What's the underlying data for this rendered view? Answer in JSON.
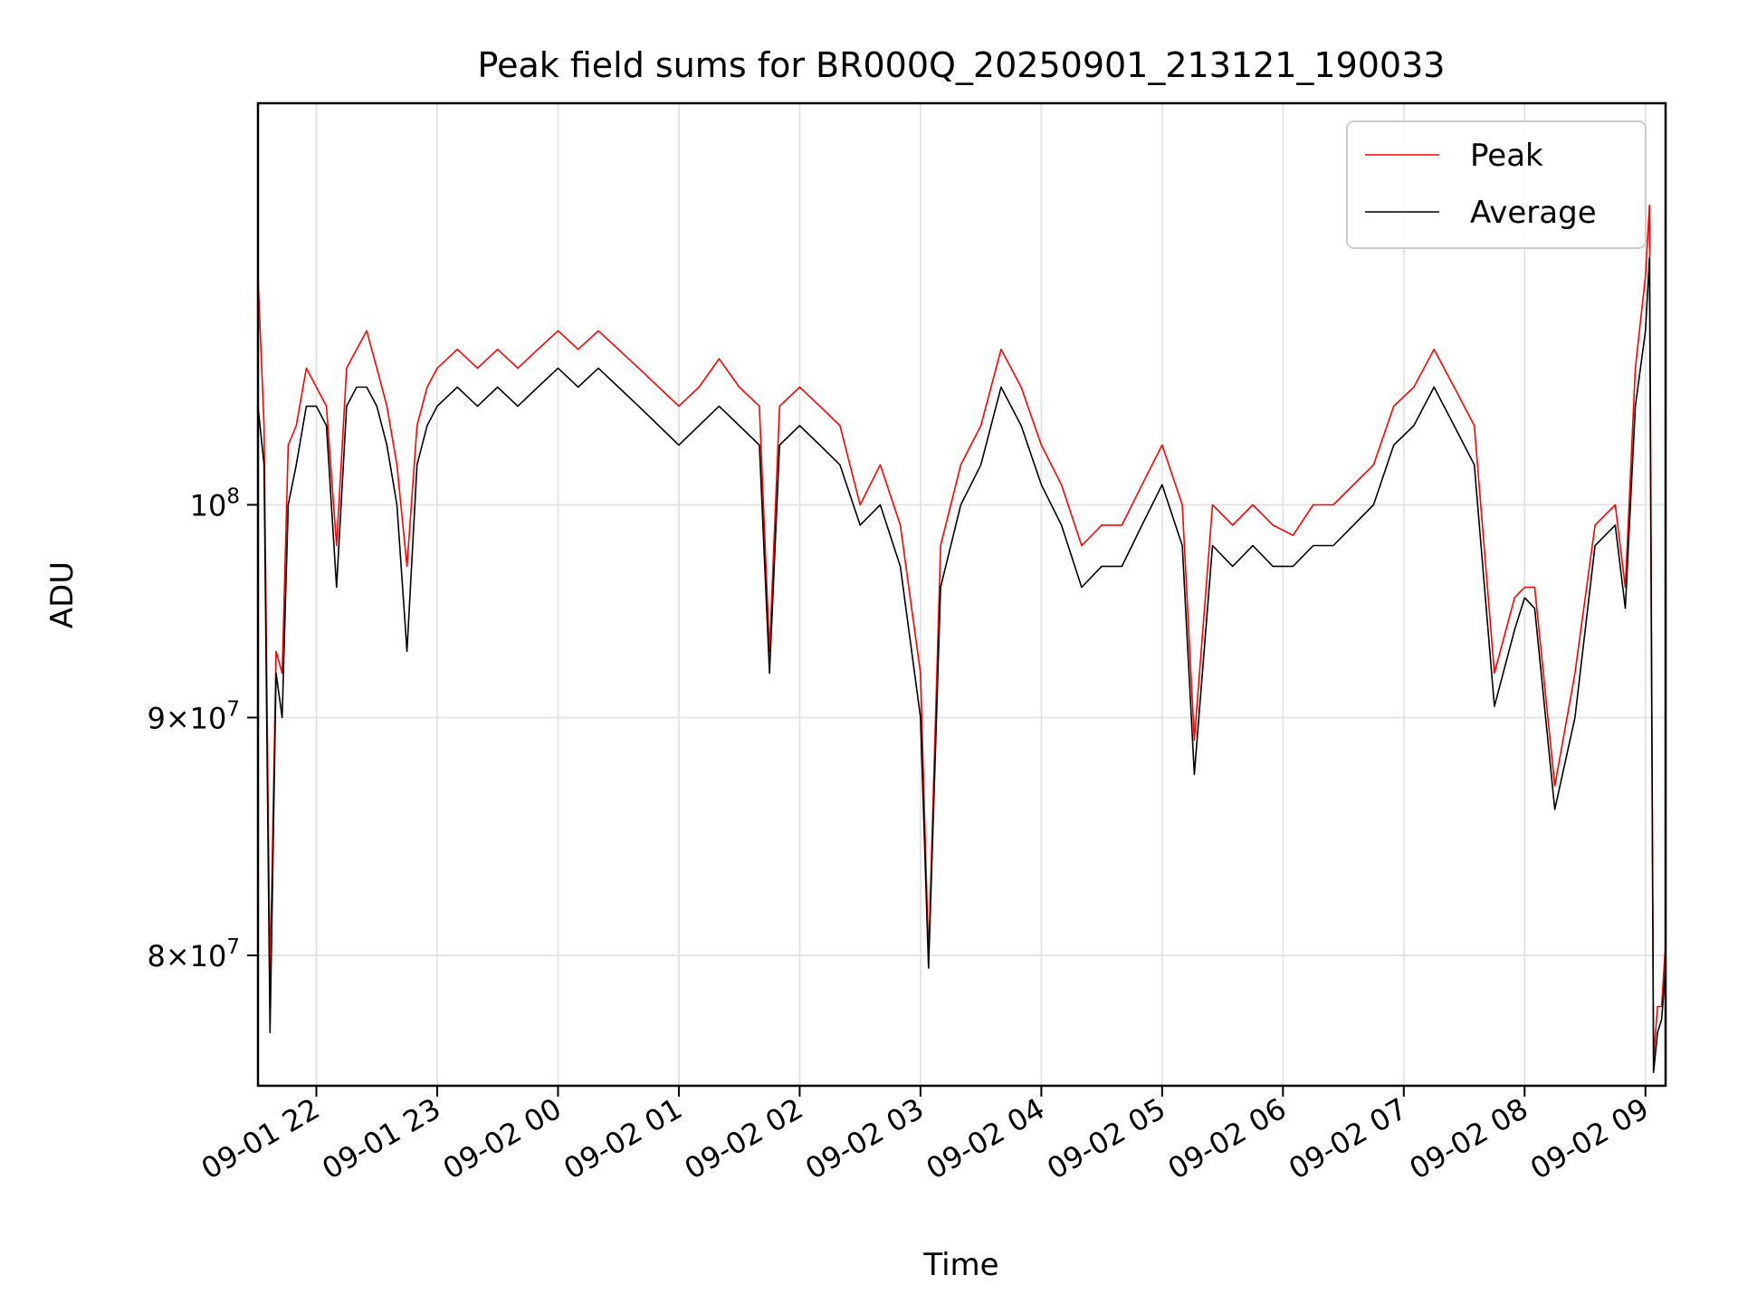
{
  "chart_data": {
    "type": "line",
    "title": "Peak field sums for BR000Q_20250901_213121_190033",
    "xlabel": "Time",
    "ylabel": "ADU",
    "y_scale": "log",
    "xlim": [
      "2025-09-01 21:31",
      "2025-09-02 09:10"
    ],
    "ylim": [
      75000000,
      122000000
    ],
    "x_tick_labels": [
      "09-01 22",
      "09-01 23",
      "09-02 00",
      "09-02 01",
      "09-02 02",
      "09-02 03",
      "09-02 04",
      "09-02 05",
      "09-02 06",
      "09-02 07",
      "09-02 08",
      "09-02 09"
    ],
    "x_tick_times": [
      "2025-09-01 22:00",
      "2025-09-01 23:00",
      "2025-09-02 00:00",
      "2025-09-02 01:00",
      "2025-09-02 02:00",
      "2025-09-02 03:00",
      "2025-09-02 04:00",
      "2025-09-02 05:00",
      "2025-09-02 06:00",
      "2025-09-02 07:00",
      "2025-09-02 08:00",
      "2025-09-02 09:00"
    ],
    "y_ticks": [
      {
        "value": 80000000,
        "mantissa": "8",
        "times": "×",
        "base": "10",
        "exp": "7"
      },
      {
        "value": 90000000,
        "mantissa": "9",
        "times": "×",
        "base": "10",
        "exp": "7"
      },
      {
        "value": 100000000,
        "mantissa": "",
        "times": "",
        "base": "10",
        "exp": "8"
      }
    ],
    "grid": true,
    "legend_position": "top-right",
    "series": [
      {
        "name": "Peak",
        "color": "#ff0000",
        "x": [
          "2025-09-01 21:31",
          "2025-09-01 21:34",
          "2025-09-01 21:37",
          "2025-09-01 21:40",
          "2025-09-01 21:43",
          "2025-09-01 21:46",
          "2025-09-01 21:50",
          "2025-09-01 21:55",
          "2025-09-01 22:00",
          "2025-09-01 22:05",
          "2025-09-01 22:10",
          "2025-09-01 22:15",
          "2025-09-01 22:20",
          "2025-09-01 22:25",
          "2025-09-01 22:30",
          "2025-09-01 22:35",
          "2025-09-01 22:40",
          "2025-09-01 22:45",
          "2025-09-01 22:50",
          "2025-09-01 22:55",
          "2025-09-01 23:00",
          "2025-09-01 23:10",
          "2025-09-01 23:20",
          "2025-09-01 23:30",
          "2025-09-01 23:40",
          "2025-09-01 23:50",
          "2025-09-02 00:00",
          "2025-09-02 00:10",
          "2025-09-02 00:20",
          "2025-09-02 00:30",
          "2025-09-02 00:40",
          "2025-09-02 00:50",
          "2025-09-02 01:00",
          "2025-09-02 01:10",
          "2025-09-02 01:20",
          "2025-09-02 01:30",
          "2025-09-02 01:40",
          "2025-09-02 01:45",
          "2025-09-02 01:50",
          "2025-09-02 02:00",
          "2025-09-02 02:10",
          "2025-09-02 02:20",
          "2025-09-02 02:30",
          "2025-09-02 02:40",
          "2025-09-02 02:50",
          "2025-09-02 03:00",
          "2025-09-02 03:04",
          "2025-09-02 03:10",
          "2025-09-02 03:20",
          "2025-09-02 03:30",
          "2025-09-02 03:40",
          "2025-09-02 03:50",
          "2025-09-02 04:00",
          "2025-09-02 04:10",
          "2025-09-02 04:20",
          "2025-09-02 04:30",
          "2025-09-02 04:40",
          "2025-09-02 04:50",
          "2025-09-02 05:00",
          "2025-09-02 05:10",
          "2025-09-02 05:16",
          "2025-09-02 05:25",
          "2025-09-02 05:35",
          "2025-09-02 05:45",
          "2025-09-02 05:55",
          "2025-09-02 06:05",
          "2025-09-02 06:15",
          "2025-09-02 06:25",
          "2025-09-02 06:35",
          "2025-09-02 06:45",
          "2025-09-02 06:55",
          "2025-09-02 07:05",
          "2025-09-02 07:15",
          "2025-09-02 07:25",
          "2025-09-02 07:35",
          "2025-09-02 07:45",
          "2025-09-02 07:55",
          "2025-09-02 08:00",
          "2025-09-02 08:05",
          "2025-09-02 08:15",
          "2025-09-02 08:25",
          "2025-09-02 08:35",
          "2025-09-02 08:45",
          "2025-09-02 08:50",
          "2025-09-02 08:55",
          "2025-09-02 09:00",
          "2025-09-02 09:02",
          "2025-09-02 09:04",
          "2025-09-02 09:06",
          "2025-09-02 09:08",
          "2025-09-02 09:10"
        ],
        "y": [
          112000000.0,
          104000000.0,
          79000000.0,
          93000000.0,
          92000000.0,
          103000000.0,
          104000000.0,
          107000000.0,
          106000000.0,
          105000000.0,
          98000000.0,
          107000000.0,
          108000000.0,
          109000000.0,
          107000000.0,
          105000000.0,
          102000000.0,
          97000000.0,
          104000000.0,
          106000000.0,
          107000000.0,
          108000000.0,
          107000000.0,
          108000000.0,
          107000000.0,
          108000000.0,
          109000000.0,
          108000000.0,
          109000000.0,
          108000000.0,
          107000000.0,
          106000000.0,
          105000000.0,
          106000000.0,
          107500000.0,
          106000000.0,
          105000000.0,
          93000000.0,
          105000000.0,
          106000000.0,
          105000000.0,
          104000000.0,
          100000000.0,
          102000000.0,
          99000000.0,
          92000000.0,
          80000000.0,
          98000000.0,
          102000000.0,
          104000000.0,
          108000000.0,
          106000000.0,
          103000000.0,
          101000000.0,
          98000000.0,
          99000000.0,
          99000000.0,
          101000000.0,
          103000000.0,
          100000000.0,
          89000000.0,
          100000000.0,
          99000000.0,
          100000000.0,
          99000000.0,
          98500000.0,
          100000000.0,
          100000000.0,
          101000000.0,
          102000000.0,
          105000000.0,
          106000000.0,
          108000000.0,
          106000000.0,
          104000000.0,
          92000000.0,
          95500000.0,
          96000000.0,
          96000000.0,
          87000000.0,
          92000000.0,
          99000000.0,
          100000000.0,
          96000000.0,
          107000000.0,
          112000000.0,
          116000000.0,
          76000000.0,
          78000000.0,
          78000000.0,
          80500000.0
        ]
      },
      {
        "name": "Average",
        "color": "#000000",
        "x": [
          "2025-09-01 21:31",
          "2025-09-01 21:34",
          "2025-09-01 21:37",
          "2025-09-01 21:40",
          "2025-09-01 21:43",
          "2025-09-01 21:46",
          "2025-09-01 21:50",
          "2025-09-01 21:55",
          "2025-09-01 22:00",
          "2025-09-01 22:05",
          "2025-09-01 22:10",
          "2025-09-01 22:15",
          "2025-09-01 22:20",
          "2025-09-01 22:25",
          "2025-09-01 22:30",
          "2025-09-01 22:35",
          "2025-09-01 22:40",
          "2025-09-01 22:45",
          "2025-09-01 22:50",
          "2025-09-01 22:55",
          "2025-09-01 23:00",
          "2025-09-01 23:10",
          "2025-09-01 23:20",
          "2025-09-01 23:30",
          "2025-09-01 23:40",
          "2025-09-01 23:50",
          "2025-09-02 00:00",
          "2025-09-02 00:10",
          "2025-09-02 00:20",
          "2025-09-02 00:30",
          "2025-09-02 00:40",
          "2025-09-02 00:50",
          "2025-09-02 01:00",
          "2025-09-02 01:10",
          "2025-09-02 01:20",
          "2025-09-02 01:30",
          "2025-09-02 01:40",
          "2025-09-02 01:45",
          "2025-09-02 01:50",
          "2025-09-02 02:00",
          "2025-09-02 02:10",
          "2025-09-02 02:20",
          "2025-09-02 02:30",
          "2025-09-02 02:40",
          "2025-09-02 02:50",
          "2025-09-02 03:00",
          "2025-09-02 03:04",
          "2025-09-02 03:10",
          "2025-09-02 03:20",
          "2025-09-02 03:30",
          "2025-09-02 03:40",
          "2025-09-02 03:50",
          "2025-09-02 04:00",
          "2025-09-02 04:10",
          "2025-09-02 04:20",
          "2025-09-02 04:30",
          "2025-09-02 04:40",
          "2025-09-02 04:50",
          "2025-09-02 05:00",
          "2025-09-02 05:10",
          "2025-09-02 05:16",
          "2025-09-02 05:25",
          "2025-09-02 05:35",
          "2025-09-02 05:45",
          "2025-09-02 05:55",
          "2025-09-02 06:05",
          "2025-09-02 06:15",
          "2025-09-02 06:25",
          "2025-09-02 06:35",
          "2025-09-02 06:45",
          "2025-09-02 06:55",
          "2025-09-02 07:05",
          "2025-09-02 07:15",
          "2025-09-02 07:25",
          "2025-09-02 07:35",
          "2025-09-02 07:45",
          "2025-09-02 07:55",
          "2025-09-02 08:00",
          "2025-09-02 08:05",
          "2025-09-02 08:15",
          "2025-09-02 08:25",
          "2025-09-02 08:35",
          "2025-09-02 08:45",
          "2025-09-02 08:50",
          "2025-09-02 08:55",
          "2025-09-02 09:00",
          "2025-09-02 09:02",
          "2025-09-02 09:04",
          "2025-09-02 09:06",
          "2025-09-02 09:08",
          "2025-09-02 09:10"
        ],
        "y": [
          105000000.0,
          102000000.0,
          77000000.0,
          92000000.0,
          90000000.0,
          100000000.0,
          102000000.0,
          105000000.0,
          105000000.0,
          104000000.0,
          96000000.0,
          105000000.0,
          106000000.0,
          106000000.0,
          105000000.0,
          103000000.0,
          100000000.0,
          93000000.0,
          102000000.0,
          104000000.0,
          105000000.0,
          106000000.0,
          105000000.0,
          106000000.0,
          105000000.0,
          106000000.0,
          107000000.0,
          106000000.0,
          107000000.0,
          106000000.0,
          105000000.0,
          104000000.0,
          103000000.0,
          104000000.0,
          105000000.0,
          104000000.0,
          103000000.0,
          92000000.0,
          103000000.0,
          104000000.0,
          103000000.0,
          102000000.0,
          99000000.0,
          100000000.0,
          97000000.0,
          90000000.0,
          79500000.0,
          96000000.0,
          100000000.0,
          102000000.0,
          106000000.0,
          104000000.0,
          101000000.0,
          99000000.0,
          96000000.0,
          97000000.0,
          97000000.0,
          99000000.0,
          101000000.0,
          98000000.0,
          87500000.0,
          98000000.0,
          97000000.0,
          98000000.0,
          97000000.0,
          97000000.0,
          98000000.0,
          98000000.0,
          99000000.0,
          100000000.0,
          103000000.0,
          104000000.0,
          106000000.0,
          104000000.0,
          102000000.0,
          90500000.0,
          94000000.0,
          95500000.0,
          95000000.0,
          86000000.0,
          90000000.0,
          98000000.0,
          99000000.0,
          95000000.0,
          105000000.0,
          109000000.0,
          113000000.0,
          75500000.0,
          77000000.0,
          77500000.0,
          79500000.0
        ]
      }
    ]
  }
}
